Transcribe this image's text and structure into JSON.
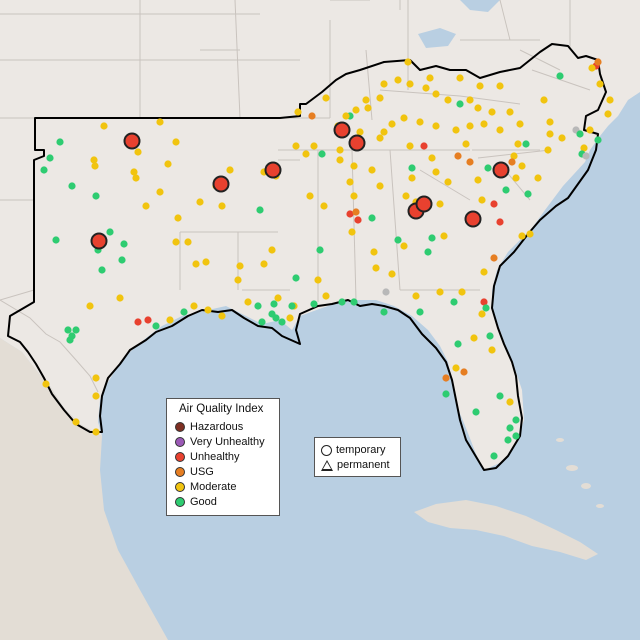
{
  "legend": {
    "title": "Air Quality Index",
    "categories": [
      {
        "label": "Hazardous",
        "color": "#7e2f22"
      },
      {
        "label": "Very Unhealthy",
        "color": "#9b59b6"
      },
      {
        "label": "Unhealthy",
        "color": "#e8412f"
      },
      {
        "label": "USG",
        "color": "#e67e22"
      },
      {
        "label": "Moderate",
        "color": "#f1c40f"
      },
      {
        "label": "Good",
        "color": "#2ecc71"
      }
    ]
  },
  "shape_legend": {
    "temporary": "temporary",
    "permanent": "permanent"
  },
  "colors": {
    "water": "#b9cfe2",
    "land": "#ece8e4",
    "border": "#c9c3be",
    "region_outline": "#000000",
    "no_data": "#b8b8b8"
  }
}
